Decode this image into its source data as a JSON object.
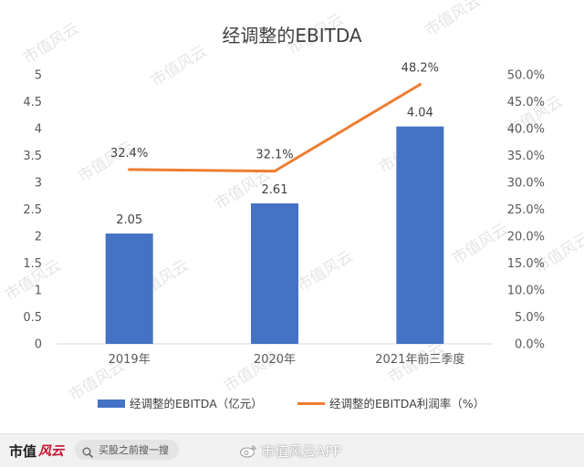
{
  "watermark_text": "市值风云",
  "footer": {
    "brand_text": "市值",
    "brand_mark": "风云",
    "search_text": "买股之前搜一搜",
    "watermark_app": "市值风云APP"
  },
  "chart_data": {
    "type": "bar",
    "title": "经调整的EBITDA",
    "categories": [
      "2019年",
      "2020年",
      "2021年前三季度"
    ],
    "series": [
      {
        "name": "经调整的EBITDA（亿元）",
        "type": "bar",
        "axis": "left",
        "values": [
          2.05,
          2.61,
          4.04
        ],
        "labels": [
          "2.05",
          "2.61",
          "4.04"
        ],
        "color": "#4472C4"
      },
      {
        "name": "经调整的EBITDA利润率（%）",
        "type": "line",
        "axis": "right",
        "values": [
          32.4,
          32.1,
          48.2
        ],
        "labels": [
          "32.4%",
          "32.1%",
          "48.2%"
        ],
        "color": "#ED7D31"
      }
    ],
    "left_axis": {
      "min": 0,
      "max": 5,
      "ticks": [
        "0",
        "0.5",
        "1",
        "1.5",
        "2",
        "2.5",
        "3",
        "3.5",
        "4",
        "4.5",
        "5"
      ]
    },
    "right_axis": {
      "min": 0,
      "max": 50,
      "ticks": [
        "0.0%",
        "5.0%",
        "10.0%",
        "15.0%",
        "20.0%",
        "25.0%",
        "30.0%",
        "35.0%",
        "40.0%",
        "45.0%",
        "50.0%"
      ]
    },
    "grid": false,
    "legend_position": "bottom"
  }
}
